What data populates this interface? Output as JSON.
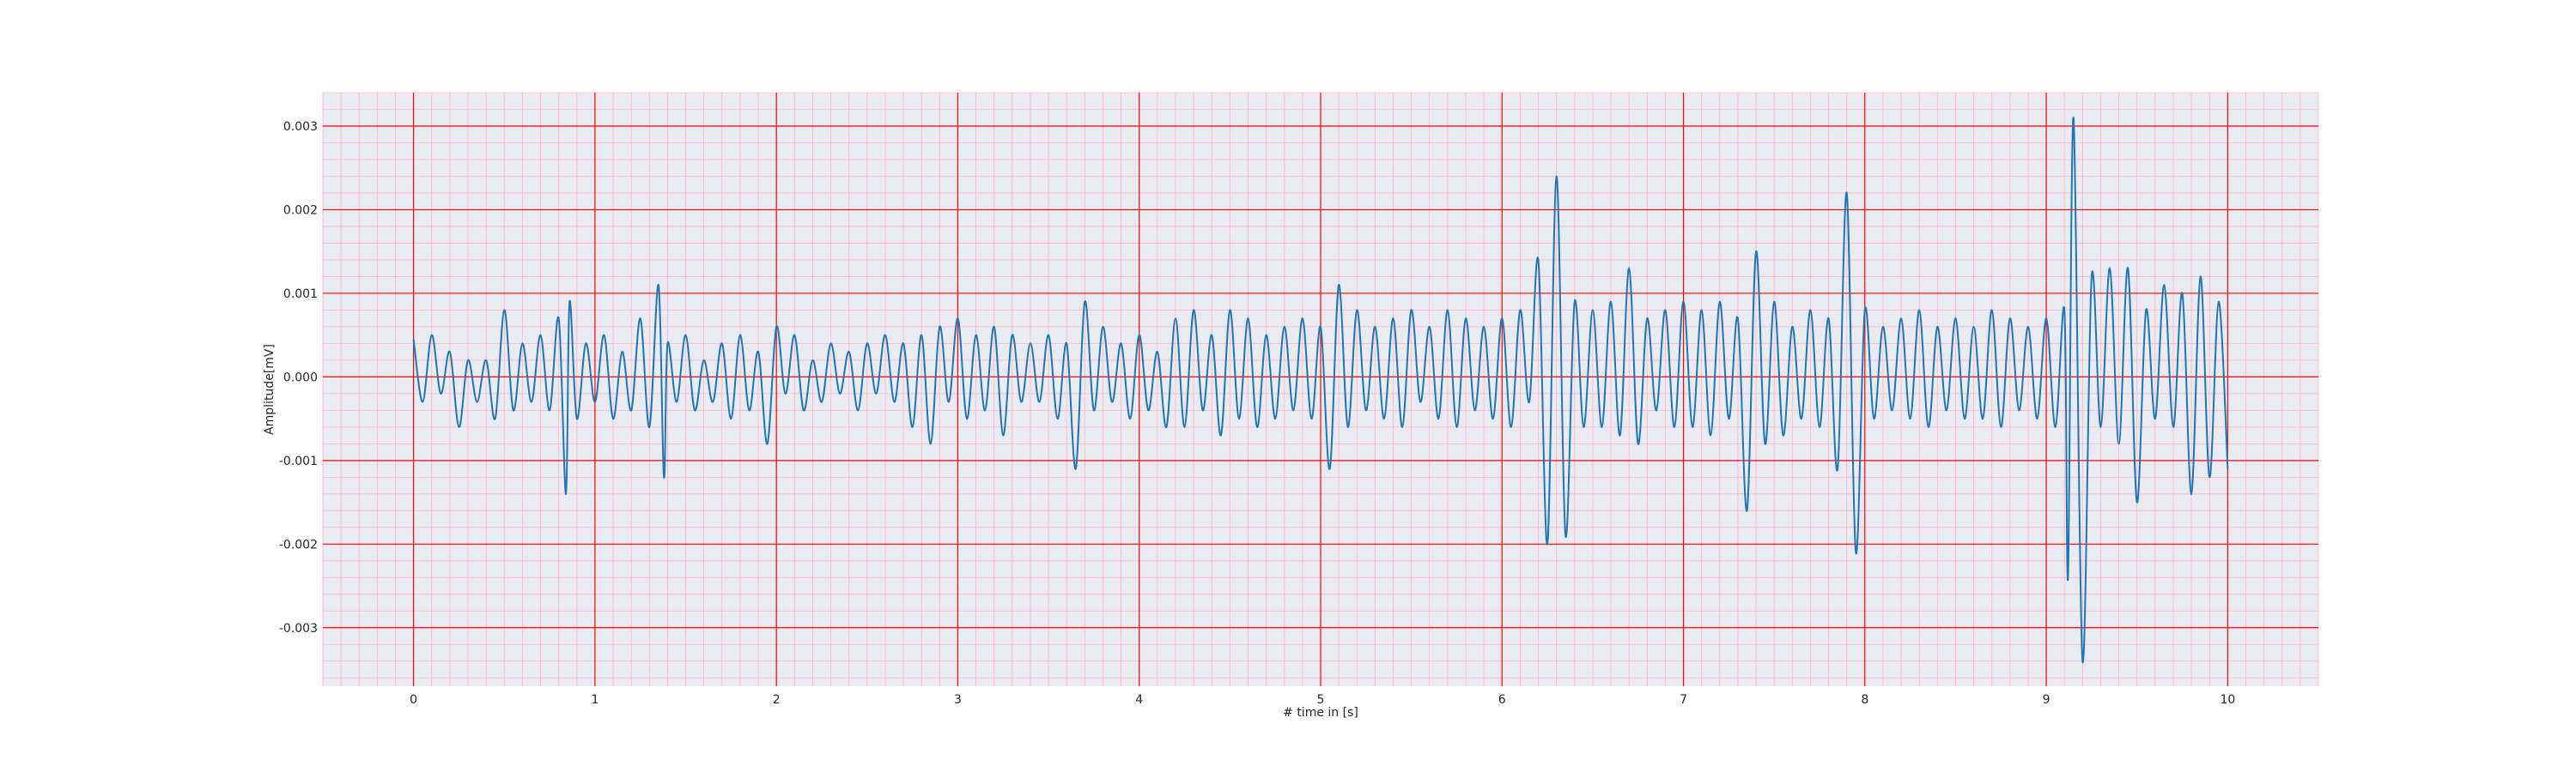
{
  "chart_data": {
    "type": "line",
    "title": "",
    "xlabel": "# time in [s]",
    "ylabel": "Amplitude[mV]",
    "xlim": [
      -0.5,
      10.5
    ],
    "ylim": [
      -0.0037,
      0.0034
    ],
    "x_ticks": [
      0,
      1,
      2,
      3,
      4,
      5,
      6,
      7,
      8,
      9,
      10
    ],
    "x_tick_labels": [
      "0",
      "1",
      "2",
      "3",
      "4",
      "5",
      "6",
      "7",
      "8",
      "9",
      "10"
    ],
    "y_ticks": [
      -0.003,
      -0.002,
      -0.001,
      0.0,
      0.001,
      0.002,
      0.003
    ],
    "y_tick_labels": [
      "-0.003",
      "-0.002",
      "-0.001",
      "0.000",
      "0.001",
      "0.002",
      "0.003"
    ],
    "grid": {
      "major": true,
      "minor": true,
      "major_color": "#ff0000",
      "minor_color": "#ffb6c1"
    },
    "legend": "none",
    "colors": {
      "line": "#1f77b4",
      "background": "#eaeaf2"
    },
    "series": [
      {
        "x": [
          0.0,
          0.05,
          0.1,
          0.15,
          0.2,
          0.25,
          0.3,
          0.35,
          0.4,
          0.45,
          0.5,
          0.55,
          0.6,
          0.65,
          0.7,
          0.75,
          0.8,
          0.84,
          0.86,
          0.9,
          0.95,
          1.0,
          1.05,
          1.1,
          1.15,
          1.2,
          1.25,
          1.3,
          1.35,
          1.38,
          1.4,
          1.45,
          1.5,
          1.55,
          1.6,
          1.65,
          1.7,
          1.75,
          1.8,
          1.85,
          1.9,
          1.95,
          2.0,
          2.05,
          2.1,
          2.15,
          2.2,
          2.25,
          2.3,
          2.35,
          2.4,
          2.45,
          2.5,
          2.55,
          2.6,
          2.65,
          2.7,
          2.75,
          2.8,
          2.85,
          2.9,
          2.95,
          3.0,
          3.05,
          3.1,
          3.15,
          3.2,
          3.25,
          3.3,
          3.35,
          3.4,
          3.45,
          3.5,
          3.55,
          3.6,
          3.65,
          3.7,
          3.75,
          3.8,
          3.85,
          3.9,
          3.95,
          4.0,
          4.05,
          4.1,
          4.15,
          4.2,
          4.25,
          4.3,
          4.35,
          4.4,
          4.45,
          4.5,
          4.55,
          4.6,
          4.65,
          4.7,
          4.75,
          4.8,
          4.85,
          4.9,
          4.95,
          5.0,
          5.05,
          5.1,
          5.15,
          5.2,
          5.25,
          5.3,
          5.35,
          5.4,
          5.45,
          5.5,
          5.55,
          5.6,
          5.65,
          5.7,
          5.75,
          5.8,
          5.85,
          5.9,
          5.95,
          6.0,
          6.05,
          6.1,
          6.15,
          6.2,
          6.25,
          6.3,
          6.35,
          6.4,
          6.45,
          6.5,
          6.55,
          6.6,
          6.65,
          6.7,
          6.75,
          6.8,
          6.85,
          6.9,
          6.95,
          7.0,
          7.05,
          7.1,
          7.15,
          7.2,
          7.25,
          7.3,
          7.35,
          7.4,
          7.45,
          7.5,
          7.55,
          7.6,
          7.65,
          7.7,
          7.75,
          7.8,
          7.85,
          7.9,
          7.95,
          8.0,
          8.05,
          8.1,
          8.15,
          8.2,
          8.25,
          8.3,
          8.35,
          8.4,
          8.45,
          8.5,
          8.55,
          8.6,
          8.65,
          8.7,
          8.75,
          8.8,
          8.85,
          8.9,
          8.95,
          9.0,
          9.05,
          9.1,
          9.12,
          9.15,
          9.2,
          9.25,
          9.3,
          9.35,
          9.4,
          9.45,
          9.5,
          9.55,
          9.6,
          9.65,
          9.7,
          9.75,
          9.8,
          9.85,
          9.9,
          9.95,
          10.0
        ],
        "y": [
          0.00045,
          -0.0003,
          0.0005,
          -0.0002,
          0.0003,
          -0.0006,
          0.0002,
          -0.0003,
          0.0002,
          -0.0005,
          0.0008,
          -0.0004,
          0.0004,
          -0.0003,
          0.0005,
          -0.0004,
          0.0007,
          -0.0014,
          0.0009,
          -0.0005,
          0.0004,
          -0.0003,
          0.0005,
          -0.0005,
          0.0003,
          -0.0004,
          0.0007,
          -0.0006,
          0.0011,
          -0.0012,
          0.0004,
          -0.0003,
          0.0005,
          -0.0004,
          0.0002,
          -0.0003,
          0.0004,
          -0.0005,
          0.0005,
          -0.0004,
          0.0003,
          -0.0008,
          0.0006,
          -0.0002,
          0.0005,
          -0.0004,
          0.0002,
          -0.0003,
          0.0004,
          -0.0002,
          0.0003,
          -0.0004,
          0.0004,
          -0.0002,
          0.0005,
          -0.0003,
          0.0004,
          -0.0006,
          0.0005,
          -0.0008,
          0.0006,
          -0.0003,
          0.0007,
          -0.0005,
          0.0005,
          -0.0004,
          0.0006,
          -0.0007,
          0.0005,
          -0.0003,
          0.0004,
          -0.0003,
          0.0005,
          -0.0005,
          0.0004,
          -0.0011,
          0.0009,
          -0.0004,
          0.0006,
          -0.0003,
          0.0004,
          -0.0005,
          0.0005,
          -0.0004,
          0.0003,
          -0.0006,
          0.0007,
          -0.0006,
          0.0008,
          -0.0004,
          0.0005,
          -0.0007,
          0.0008,
          -0.0005,
          0.0007,
          -0.0006,
          0.0005,
          -0.0005,
          0.0006,
          -0.0004,
          0.0007,
          -0.0005,
          0.0006,
          -0.0011,
          0.0011,
          -0.0006,
          0.0008,
          -0.0004,
          0.0006,
          -0.0005,
          0.0007,
          -0.0006,
          0.0008,
          -0.0003,
          0.0006,
          -0.0005,
          0.0008,
          -0.0006,
          0.0007,
          -0.0004,
          0.0006,
          -0.0005,
          0.0007,
          -0.0006,
          0.0008,
          -0.0003,
          0.0014,
          -0.002,
          0.0024,
          -0.0019,
          0.0009,
          -0.0006,
          0.0008,
          -0.0006,
          0.0009,
          -0.0007,
          0.0013,
          -0.0008,
          0.0007,
          -0.0004,
          0.0008,
          -0.0006,
          0.0009,
          -0.0006,
          0.0008,
          -0.0007,
          0.0009,
          -0.0005,
          0.0007,
          -0.0016,
          0.0015,
          -0.0008,
          0.0009,
          -0.0007,
          0.0006,
          -0.0005,
          0.0008,
          -0.0006,
          0.0007,
          -0.0011,
          0.0022,
          -0.0021,
          0.0008,
          -0.0005,
          0.0006,
          -0.0004,
          0.0007,
          -0.0005,
          0.0008,
          -0.0006,
          0.0006,
          -0.0004,
          0.0007,
          -0.0005,
          0.0006,
          -0.0005,
          0.0008,
          -0.0006,
          0.0007,
          -0.0004,
          0.0006,
          -0.0005,
          0.0007,
          -0.0006,
          0.0008,
          -0.0024,
          0.0031,
          -0.0034,
          0.0012,
          -0.0006,
          0.0013,
          -0.0008,
          0.0013,
          -0.0015,
          0.0008,
          -0.0005,
          0.0011,
          -0.0006,
          0.001,
          -0.0014,
          0.0012,
          -0.0012,
          0.0009,
          -0.0011
        ]
      }
    ]
  }
}
